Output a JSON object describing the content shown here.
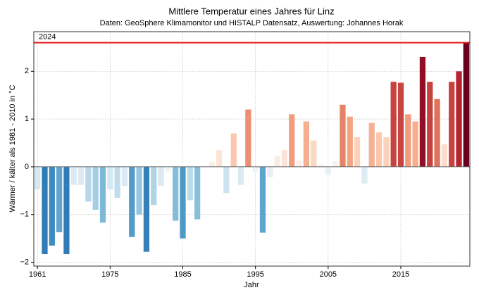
{
  "chart_data": {
    "type": "bar",
    "title": "Mittlere Temperatur eines Jahres für Linz",
    "subtitle": "Daten: GeoSphere Klimamonitor und HISTALP Datensatz, Auswertung: Johannes Horak",
    "x_label": "Jahr",
    "y_label": "Wärmer / kälter als 1981 - 2010 in °C",
    "categories": [
      "1961",
      null,
      null,
      null,
      null,
      null,
      null,
      null,
      null,
      null,
      "1975",
      null,
      null,
      null,
      null,
      null,
      null,
      null,
      null,
      null,
      "1985",
      null,
      null,
      null,
      null,
      null,
      null,
      null,
      null,
      null,
      "1995",
      null,
      null,
      null,
      null,
      null,
      null,
      null,
      null,
      null,
      "2005",
      null,
      null,
      null,
      null,
      null,
      null,
      null,
      null,
      null,
      "2015",
      null,
      null,
      null,
      null,
      null,
      null,
      null,
      null,
      null
    ],
    "values": [
      -0.47,
      -1.83,
      -1.65,
      -1.37,
      -1.83,
      -0.38,
      -0.38,
      -0.73,
      -0.9,
      -1.17,
      -0.47,
      -0.65,
      -0.4,
      -1.47,
      -1.0,
      -1.78,
      -0.8,
      -0.4,
      -0.1,
      -1.13,
      -1.5,
      -0.7,
      -1.1,
      0.02,
      0.11,
      0.35,
      -0.55,
      0.7,
      -0.38,
      1.2,
      -0.1,
      -1.38,
      -0.22,
      0.22,
      0.35,
      1.1,
      0.13,
      0.95,
      0.55,
      0.05,
      -0.17,
      0.12,
      1.3,
      1.05,
      0.62,
      -0.35,
      0.92,
      0.72,
      0.62,
      1.78,
      1.76,
      1.1,
      0.95,
      2.3,
      1.78,
      1.42,
      0.47,
      1.78,
      2.0,
      2.6
    ],
    "colormap": [
      "#053061",
      "#2166ac",
      "#4393c3",
      "#92c5de",
      "#d1e5f0",
      "#f7f7f7",
      "#fddbc7",
      "#f4a582",
      "#d6604d",
      "#b2182b",
      "#67001f"
    ],
    "clim": [
      -2.6,
      2.6
    ],
    "ylim": [
      -2.08,
      2.83
    ],
    "yticks": [
      {
        "value": -2,
        "label": "−2"
      },
      {
        "value": -1,
        "label": "−1"
      },
      0,
      1,
      2
    ],
    "reference_line": {
      "value": 2.6,
      "label": "2024",
      "color": "#e41a1c"
    },
    "grid": true
  }
}
